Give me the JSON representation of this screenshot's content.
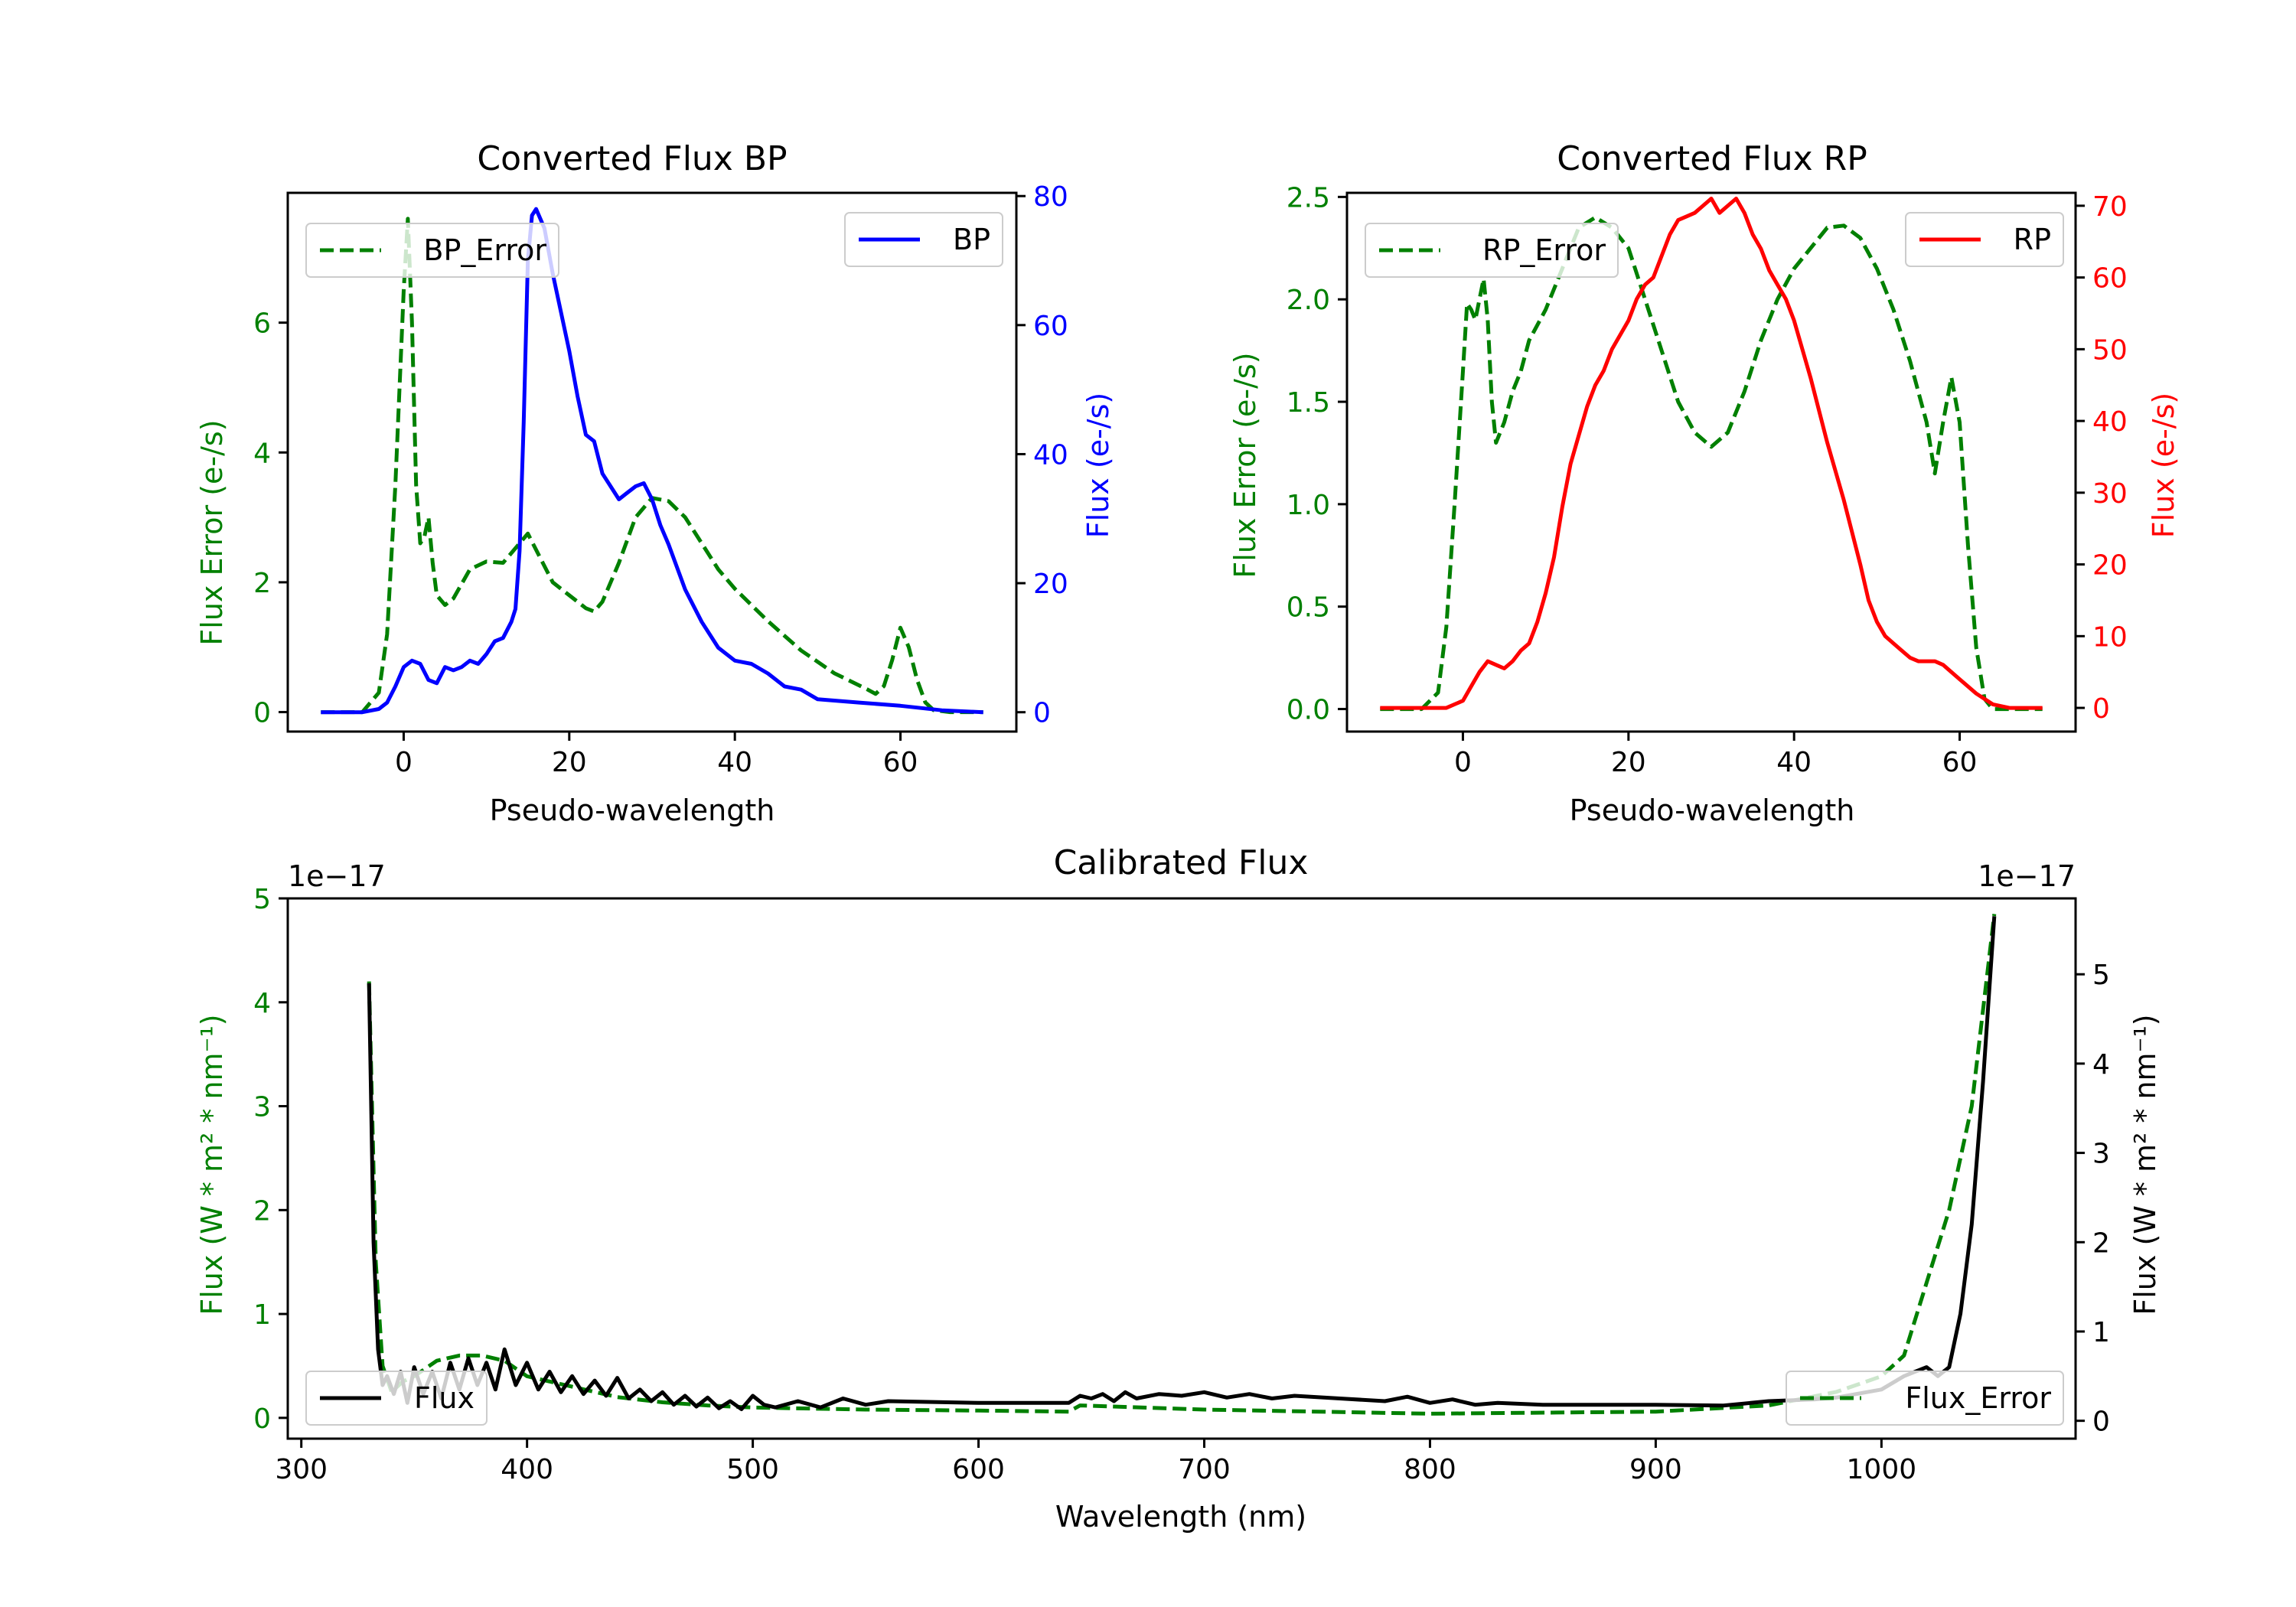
{
  "colors": {
    "green": "#008000",
    "blue": "#0000ff",
    "red": "#ff0000",
    "black": "#000000"
  },
  "chart_data": [
    {
      "id": "bp",
      "type": "line",
      "title": "Converted Flux BP",
      "xlabel": "Pseudo-wavelength",
      "ylabel_left": "Flux Error (e-/s)",
      "ylabel_right": "Flux (e-/s)",
      "xlim": [
        -14,
        74
      ],
      "ylim_left": [
        -0.3,
        8.0
      ],
      "ylim_right": [
        -3,
        80.5
      ],
      "xticks": [
        0,
        20,
        40,
        60
      ],
      "yticks_left": [
        0,
        2,
        4,
        6
      ],
      "yticks_right": [
        0,
        20,
        40,
        60,
        80
      ],
      "legend_left": "BP_Error",
      "legend_right": "BP",
      "series": [
        {
          "name": "BP_Error",
          "axis": "left",
          "style": "dashed",
          "color": "green",
          "x": [
            -10,
            -5,
            -3,
            -2,
            -1,
            0,
            0.5,
            1,
            1.5,
            2,
            2.5,
            3,
            3.5,
            4,
            5,
            6,
            8,
            10,
            12,
            14,
            15,
            16,
            18,
            20,
            22,
            23,
            24,
            26,
            28,
            30,
            32,
            34,
            36,
            38,
            40,
            44,
            48,
            52,
            56,
            57,
            58,
            59,
            60,
            61,
            62,
            63,
            64,
            66,
            70
          ],
          "y": [
            0,
            0,
            0.3,
            1.2,
            3.5,
            6.5,
            7.6,
            6.0,
            3.5,
            2.6,
            2.7,
            3.0,
            2.3,
            1.8,
            1.65,
            1.75,
            2.2,
            2.32,
            2.3,
            2.6,
            2.75,
            2.5,
            2.0,
            1.8,
            1.6,
            1.55,
            1.7,
            2.3,
            3.0,
            3.3,
            3.25,
            3.0,
            2.6,
            2.2,
            1.9,
            1.4,
            0.95,
            0.6,
            0.35,
            0.28,
            0.4,
            0.8,
            1.3,
            1.0,
            0.5,
            0.15,
            0.03,
            0,
            0
          ]
        },
        {
          "name": "BP",
          "axis": "right",
          "style": "solid",
          "color": "blue",
          "x": [
            -10,
            -5,
            -3,
            -2,
            -1,
            0,
            1,
            2,
            3,
            4,
            5,
            6,
            7,
            8,
            9,
            10,
            11,
            12,
            13,
            13.5,
            14,
            14.5,
            15,
            15.5,
            16,
            17,
            18,
            19,
            20,
            21,
            22,
            23,
            24,
            25,
            26,
            27,
            28,
            29,
            30,
            31,
            32,
            34,
            36,
            38,
            40,
            42,
            44,
            46,
            48,
            50,
            55,
            60,
            65,
            70
          ],
          "y": [
            0,
            0,
            0.5,
            1.5,
            4,
            7,
            8,
            7.5,
            5,
            4.5,
            7,
            6.5,
            7,
            8,
            7.5,
            9,
            11,
            11.5,
            14,
            16,
            25,
            45,
            70,
            77,
            78,
            75,
            68,
            62,
            56,
            49,
            43,
            42,
            37,
            35,
            33,
            34,
            35,
            35.5,
            33,
            29,
            26,
            19,
            14,
            10,
            8,
            7.5,
            6,
            4,
            3.5,
            2,
            1.5,
            1,
            0.3,
            0
          ]
        }
      ]
    },
    {
      "id": "rp",
      "type": "line",
      "title": "Converted Flux RP",
      "xlabel": "Pseudo-wavelength",
      "ylabel_left": "Flux Error (e-/s)",
      "ylabel_right": "Flux (e-/s)",
      "xlim": [
        -14,
        74
      ],
      "ylim_left": [
        -0.11,
        2.52
      ],
      "ylim_right": [
        -3.3,
        71.8
      ],
      "xticks": [
        0,
        20,
        40,
        60
      ],
      "yticks_left": [
        0.0,
        0.5,
        1.0,
        1.5,
        2.0,
        2.5
      ],
      "yticks_right": [
        0,
        10,
        20,
        30,
        40,
        50,
        60,
        70
      ],
      "legend_left": "RP_Error",
      "legend_right": "RP",
      "series": [
        {
          "name": "RP_Error",
          "axis": "left",
          "style": "dashed",
          "color": "green",
          "x": [
            -10,
            -5,
            -3,
            -2,
            -1,
            0,
            0.5,
            1,
            1.5,
            2,
            2.5,
            3,
            3.5,
            4,
            5,
            6,
            7,
            8,
            10,
            12,
            14,
            16,
            18,
            20,
            22,
            24,
            26,
            28,
            30,
            32,
            34,
            36,
            38,
            40,
            42,
            44,
            46,
            48,
            50,
            52,
            54,
            56,
            57,
            58,
            59,
            60,
            61,
            62,
            63,
            64,
            66,
            70
          ],
          "y": [
            0,
            0,
            0.08,
            0.4,
            1.0,
            1.65,
            1.98,
            1.95,
            1.9,
            2.0,
            2.1,
            1.9,
            1.5,
            1.3,
            1.4,
            1.55,
            1.65,
            1.8,
            1.95,
            2.15,
            2.35,
            2.4,
            2.35,
            2.25,
            2.0,
            1.75,
            1.5,
            1.35,
            1.28,
            1.35,
            1.55,
            1.8,
            2.0,
            2.15,
            2.25,
            2.35,
            2.36,
            2.3,
            2.15,
            1.95,
            1.7,
            1.4,
            1.15,
            1.4,
            1.62,
            1.4,
            0.8,
            0.3,
            0.05,
            0,
            0,
            0
          ]
        },
        {
          "name": "RP",
          "axis": "right",
          "style": "solid",
          "color": "red",
          "x": [
            -10,
            -2,
            0,
            1,
            2,
            3,
            4,
            5,
            6,
            7,
            8,
            9,
            10,
            11,
            12,
            13,
            14,
            15,
            16,
            17,
            18,
            19,
            20,
            21,
            22,
            23,
            24,
            25,
            26,
            27,
            28,
            29,
            30,
            31,
            32,
            33,
            34,
            35,
            36,
            37,
            38,
            39,
            40,
            41,
            42,
            44,
            46,
            48,
            49,
            50,
            51,
            52,
            53,
            54,
            55,
            56,
            57,
            58,
            60,
            62,
            64,
            66,
            70
          ],
          "y": [
            0,
            0,
            1,
            3,
            5,
            6.5,
            6,
            5.5,
            6.5,
            8,
            9,
            12,
            16,
            21,
            28,
            34,
            38,
            42,
            45,
            47,
            50,
            52,
            54,
            57,
            59,
            60,
            63,
            66,
            68,
            68.5,
            69,
            70,
            71,
            69,
            70,
            71,
            69,
            66,
            64,
            61,
            59,
            57,
            54,
            50,
            46,
            37,
            29,
            20,
            15,
            12,
            10,
            9,
            8,
            7,
            6.5,
            6.5,
            6.5,
            6,
            4,
            2,
            0.5,
            0,
            0
          ]
        }
      ]
    },
    {
      "id": "cal",
      "type": "line",
      "title": "Calibrated Flux",
      "xlabel": "Wavelength (nm)",
      "ylabel_left": "Flux (W * m² * nm⁻¹)",
      "ylabel_right": "Flux (W * m² * nm⁻¹)",
      "offset_left": "1e−17",
      "offset_right": "1e−17",
      "xlim": [
        294,
        1086
      ],
      "ylim_left": [
        -0.2,
        5.0
      ],
      "ylim_right": [
        -0.2,
        5.85
      ],
      "xticks": [
        300,
        400,
        500,
        600,
        700,
        800,
        900,
        1000
      ],
      "yticks_left": [
        0,
        1,
        2,
        3,
        4,
        5
      ],
      "yticks_right": [
        0,
        1,
        2,
        3,
        4,
        5
      ],
      "legend_left": "Flux",
      "legend_right": "Flux_Error",
      "series": [
        {
          "name": "Flux_Error",
          "axis": "left",
          "style": "dashed",
          "color": "green",
          "x": [
            330,
            333,
            336,
            340,
            345,
            350,
            360,
            370,
            380,
            390,
            400,
            420,
            440,
            460,
            480,
            500,
            550,
            600,
            640,
            645,
            700,
            800,
            900,
            950,
            980,
            1000,
            1010,
            1020,
            1030,
            1040,
            1050
          ],
          "y": [
            4.2,
            1.5,
            0.5,
            0.25,
            0.35,
            0.4,
            0.55,
            0.6,
            0.6,
            0.55,
            0.4,
            0.3,
            0.2,
            0.15,
            0.12,
            0.1,
            0.08,
            0.07,
            0.06,
            0.12,
            0.08,
            0.04,
            0.06,
            0.12,
            0.25,
            0.4,
            0.6,
            1.3,
            2.0,
            3.0,
            4.85
          ]
        },
        {
          "name": "Flux",
          "axis": "right",
          "style": "solid",
          "color": "black",
          "x": [
            330,
            332,
            334,
            336,
            338,
            341,
            344,
            347,
            350,
            354,
            358,
            362,
            366,
            370,
            374,
            378,
            382,
            386,
            390,
            395,
            400,
            405,
            410,
            415,
            420,
            425,
            430,
            435,
            440,
            445,
            450,
            455,
            460,
            465,
            470,
            475,
            480,
            485,
            490,
            495,
            500,
            505,
            510,
            520,
            530,
            540,
            550,
            560,
            600,
            640,
            645,
            650,
            655,
            660,
            665,
            670,
            680,
            690,
            700,
            710,
            720,
            730,
            740,
            760,
            780,
            790,
            800,
            810,
            820,
            830,
            850,
            900,
            930,
            950,
            970,
            980,
            1000,
            1010,
            1020,
            1025,
            1030,
            1035,
            1040,
            1045,
            1050
          ],
          "y": [
            4.9,
            2.0,
            0.8,
            0.4,
            0.5,
            0.3,
            0.55,
            0.2,
            0.6,
            0.3,
            0.55,
            0.25,
            0.65,
            0.35,
            0.7,
            0.4,
            0.65,
            0.35,
            0.8,
            0.4,
            0.65,
            0.35,
            0.55,
            0.32,
            0.5,
            0.3,
            0.45,
            0.28,
            0.48,
            0.25,
            0.35,
            0.22,
            0.32,
            0.18,
            0.28,
            0.16,
            0.26,
            0.14,
            0.22,
            0.13,
            0.28,
            0.18,
            0.15,
            0.22,
            0.15,
            0.25,
            0.18,
            0.22,
            0.2,
            0.2,
            0.28,
            0.25,
            0.3,
            0.22,
            0.32,
            0.25,
            0.3,
            0.28,
            0.32,
            0.26,
            0.3,
            0.25,
            0.28,
            0.25,
            0.22,
            0.27,
            0.2,
            0.24,
            0.18,
            0.2,
            0.18,
            0.18,
            0.17,
            0.22,
            0.24,
            0.26,
            0.35,
            0.5,
            0.6,
            0.5,
            0.6,
            1.2,
            2.2,
            3.8,
            5.65
          ]
        }
      ]
    }
  ]
}
